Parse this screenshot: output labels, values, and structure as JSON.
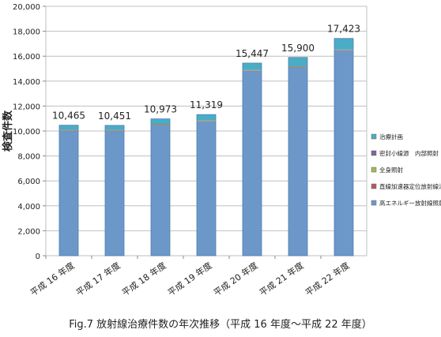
{
  "chart_data": {
    "type": "bar",
    "stacked": true,
    "categories": [
      "平成 16 年度",
      "平成 17 年度",
      "平成 18 年度",
      "平成 19 年度",
      "平成 20 年度",
      "平成 21 年度",
      "平成 22 年度"
    ],
    "totals": [
      10465,
      10451,
      10973,
      11319,
      15447,
      15900,
      17423
    ],
    "total_labels": [
      "10,465",
      "10,451",
      "10,973",
      "11,319",
      "15,447",
      "15,900",
      "17,423"
    ],
    "series": [
      {
        "name": "高エネルギー放射線照射",
        "color": "#6b98c9",
        "values": [
          10000,
          10000,
          10450,
          10750,
          14800,
          15100,
          16450
        ]
      },
      {
        "name": "直線加速器定位放射線治療",
        "color": "#b85a5a",
        "values": [
          20,
          20,
          20,
          20,
          20,
          20,
          20
        ]
      },
      {
        "name": "全身照射",
        "color": "#9bbb59",
        "values": [
          40,
          40,
          40,
          40,
          40,
          40,
          40
        ]
      },
      {
        "name": "密封小線源　内部照射",
        "color": "#8064a2",
        "values": [
          25,
          25,
          25,
          25,
          25,
          25,
          25
        ]
      },
      {
        "name": "治療計画",
        "color": "#4bacc6",
        "values": [
          380,
          366,
          438,
          484,
          562,
          715,
          888
        ]
      }
    ],
    "ylabel": "検査件数",
    "ylim": [
      0,
      20000
    ],
    "yticks": [
      0,
      2000,
      4000,
      6000,
      8000,
      10000,
      12000,
      14000,
      16000,
      18000,
      20000
    ],
    "ytick_labels": [
      "0",
      "2,000",
      "4,000",
      "6,000",
      "8,000",
      "10,000",
      "12,000",
      "14,000",
      "16,000",
      "18,000",
      "20,000"
    ],
    "grid": true,
    "legend_placement": "right"
  },
  "caption": "Fig.7 放射線治療件数の年次推移（平成 16 年度～平成 22 年度）"
}
